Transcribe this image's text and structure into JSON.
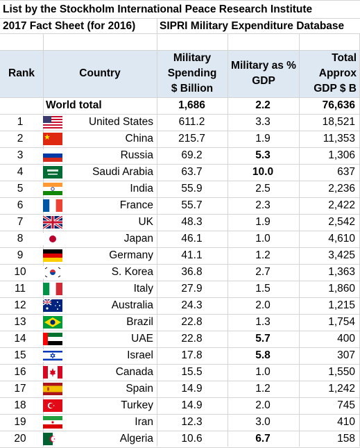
{
  "title": "List by the Stockholm International Peace Research Institute",
  "subtitle_left": "2017 Fact Sheet (for 2016)",
  "subtitle_right": "SIPRI Military Expenditure Database",
  "headers": {
    "rank": "Rank",
    "country": "Country",
    "spending": "Military Spending $ Billion",
    "gdp_pct": "Military as % GDP",
    "gdp_total": "Total Approx GDP $ B"
  },
  "world": {
    "label": "World total",
    "spending": "1,686",
    "gdp_pct": "2.2",
    "gdp_total": "76,636"
  },
  "rows": [
    {
      "rank": "1",
      "flag": "flag-usa-icon",
      "country": "United States",
      "spending": "611.2",
      "gdp_pct": "3.3",
      "gdp_total": "18,521",
      "pct_bold": false
    },
    {
      "rank": "2",
      "flag": "flag-china-icon",
      "country": "China",
      "spending": "215.7",
      "gdp_pct": "1.9",
      "gdp_total": "11,353",
      "pct_bold": false
    },
    {
      "rank": "3",
      "flag": "flag-russia-icon",
      "country": "Russia",
      "spending": "69.2",
      "gdp_pct": "5.3",
      "gdp_total": "1,306",
      "pct_bold": true
    },
    {
      "rank": "4",
      "flag": "flag-saudi-arabia-icon",
      "country": "Saudi Arabia",
      "spending": "63.7",
      "gdp_pct": "10.0",
      "gdp_total": "637",
      "pct_bold": true
    },
    {
      "rank": "5",
      "flag": "flag-india-icon",
      "country": "India",
      "spending": "55.9",
      "gdp_pct": "2.5",
      "gdp_total": "2,236",
      "pct_bold": false
    },
    {
      "rank": "6",
      "flag": "flag-france-icon",
      "country": "France",
      "spending": "55.7",
      "gdp_pct": "2.3",
      "gdp_total": "2,422",
      "pct_bold": false
    },
    {
      "rank": "7",
      "flag": "flag-uk-icon",
      "country": "UK",
      "spending": "48.3",
      "gdp_pct": "1.9",
      "gdp_total": "2,542",
      "pct_bold": false
    },
    {
      "rank": "8",
      "flag": "flag-japan-icon",
      "country": "Japan",
      "spending": "46.1",
      "gdp_pct": "1.0",
      "gdp_total": "4,610",
      "pct_bold": false
    },
    {
      "rank": "9",
      "flag": "flag-germany-icon",
      "country": "Germany",
      "spending": "41.1",
      "gdp_pct": "1.2",
      "gdp_total": "3,425",
      "pct_bold": false
    },
    {
      "rank": "10",
      "flag": "flag-south-korea-icon",
      "country": "S. Korea",
      "spending": "36.8",
      "gdp_pct": "2.7",
      "gdp_total": "1,363",
      "pct_bold": false
    },
    {
      "rank": "11",
      "flag": "flag-italy-icon",
      "country": "Italy",
      "spending": "27.9",
      "gdp_pct": "1.5",
      "gdp_total": "1,860",
      "pct_bold": false
    },
    {
      "rank": "12",
      "flag": "flag-australia-icon",
      "country": "Australia",
      "spending": "24.3",
      "gdp_pct": "2.0",
      "gdp_total": "1,215",
      "pct_bold": false
    },
    {
      "rank": "13",
      "flag": "flag-brazil-icon",
      "country": "Brazil",
      "spending": "22.8",
      "gdp_pct": "1.3",
      "gdp_total": "1,754",
      "pct_bold": false
    },
    {
      "rank": "14",
      "flag": "flag-uae-icon",
      "country": "UAE",
      "spending": "22.8",
      "gdp_pct": "5.7",
      "gdp_total": "400",
      "pct_bold": true
    },
    {
      "rank": "15",
      "flag": "flag-israel-icon",
      "country": "Israel",
      "spending": "17.8",
      "gdp_pct": "5.8",
      "gdp_total": "307",
      "pct_bold": true
    },
    {
      "rank": "16",
      "flag": "flag-canada-icon",
      "country": "Canada",
      "spending": "15.5",
      "gdp_pct": "1.0",
      "gdp_total": "1,550",
      "pct_bold": false
    },
    {
      "rank": "17",
      "flag": "flag-spain-icon",
      "country": "Spain",
      "spending": "14.9",
      "gdp_pct": "1.2",
      "gdp_total": "1,242",
      "pct_bold": false
    },
    {
      "rank": "18",
      "flag": "flag-turkey-icon",
      "country": "Turkey",
      "spending": "14.9",
      "gdp_pct": "2.0",
      "gdp_total": "745",
      "pct_bold": false
    },
    {
      "rank": "19",
      "flag": "flag-iran-icon",
      "country": "Iran",
      "spending": "12.3",
      "gdp_pct": "3.0",
      "gdp_total": "410",
      "pct_bold": false
    },
    {
      "rank": "20",
      "flag": "flag-algeria-icon",
      "country": "Algeria",
      "spending": "10.6",
      "gdp_pct": "6.7",
      "gdp_total": "158",
      "pct_bold": true
    }
  ],
  "colors": {
    "header_bg": "#dde8f3",
    "gridline": "#d4d4d4"
  }
}
